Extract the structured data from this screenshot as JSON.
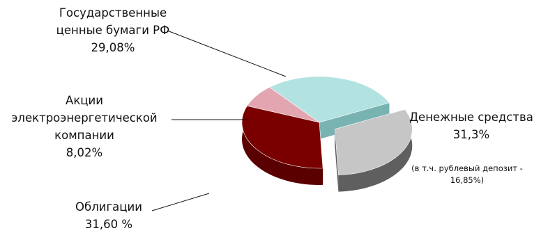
{
  "chart_data": {
    "type": "pie",
    "title": "",
    "slices": [
      {
        "name": "Государственные ценные бумаги РФ",
        "label_lines": [
          "Государственные",
          "ценные бумаги РФ"
        ],
        "value_text": "29,08%",
        "value": 29.08,
        "color": "#b2e3e1",
        "side_color": "#79b3b1",
        "exploded": false
      },
      {
        "name": "Денежные средства",
        "label_lines": [
          "Денежные средства"
        ],
        "value_text": "31,3%",
        "value": 31.3,
        "color": "#c6c6c6",
        "side_color": "#5f5f5f",
        "exploded": true,
        "note_lines": [
          "(в т.ч. рублевый депозит -",
          "16,85%)"
        ]
      },
      {
        "name": "Облигации",
        "label_lines": [
          "Облигации"
        ],
        "value_text": "31,60 %",
        "value": 31.6,
        "color": "#7a0000",
        "side_color": "#5a0000",
        "exploded": false
      },
      {
        "name": "Акции электроэнергетической компании",
        "label_lines": [
          "Акции",
          "электроэнергетической",
          "компании"
        ],
        "value_text": "8,02%",
        "value": 8.02,
        "color": "#e3a6b1",
        "side_color": "#a97a83",
        "exploded": false
      }
    ]
  }
}
